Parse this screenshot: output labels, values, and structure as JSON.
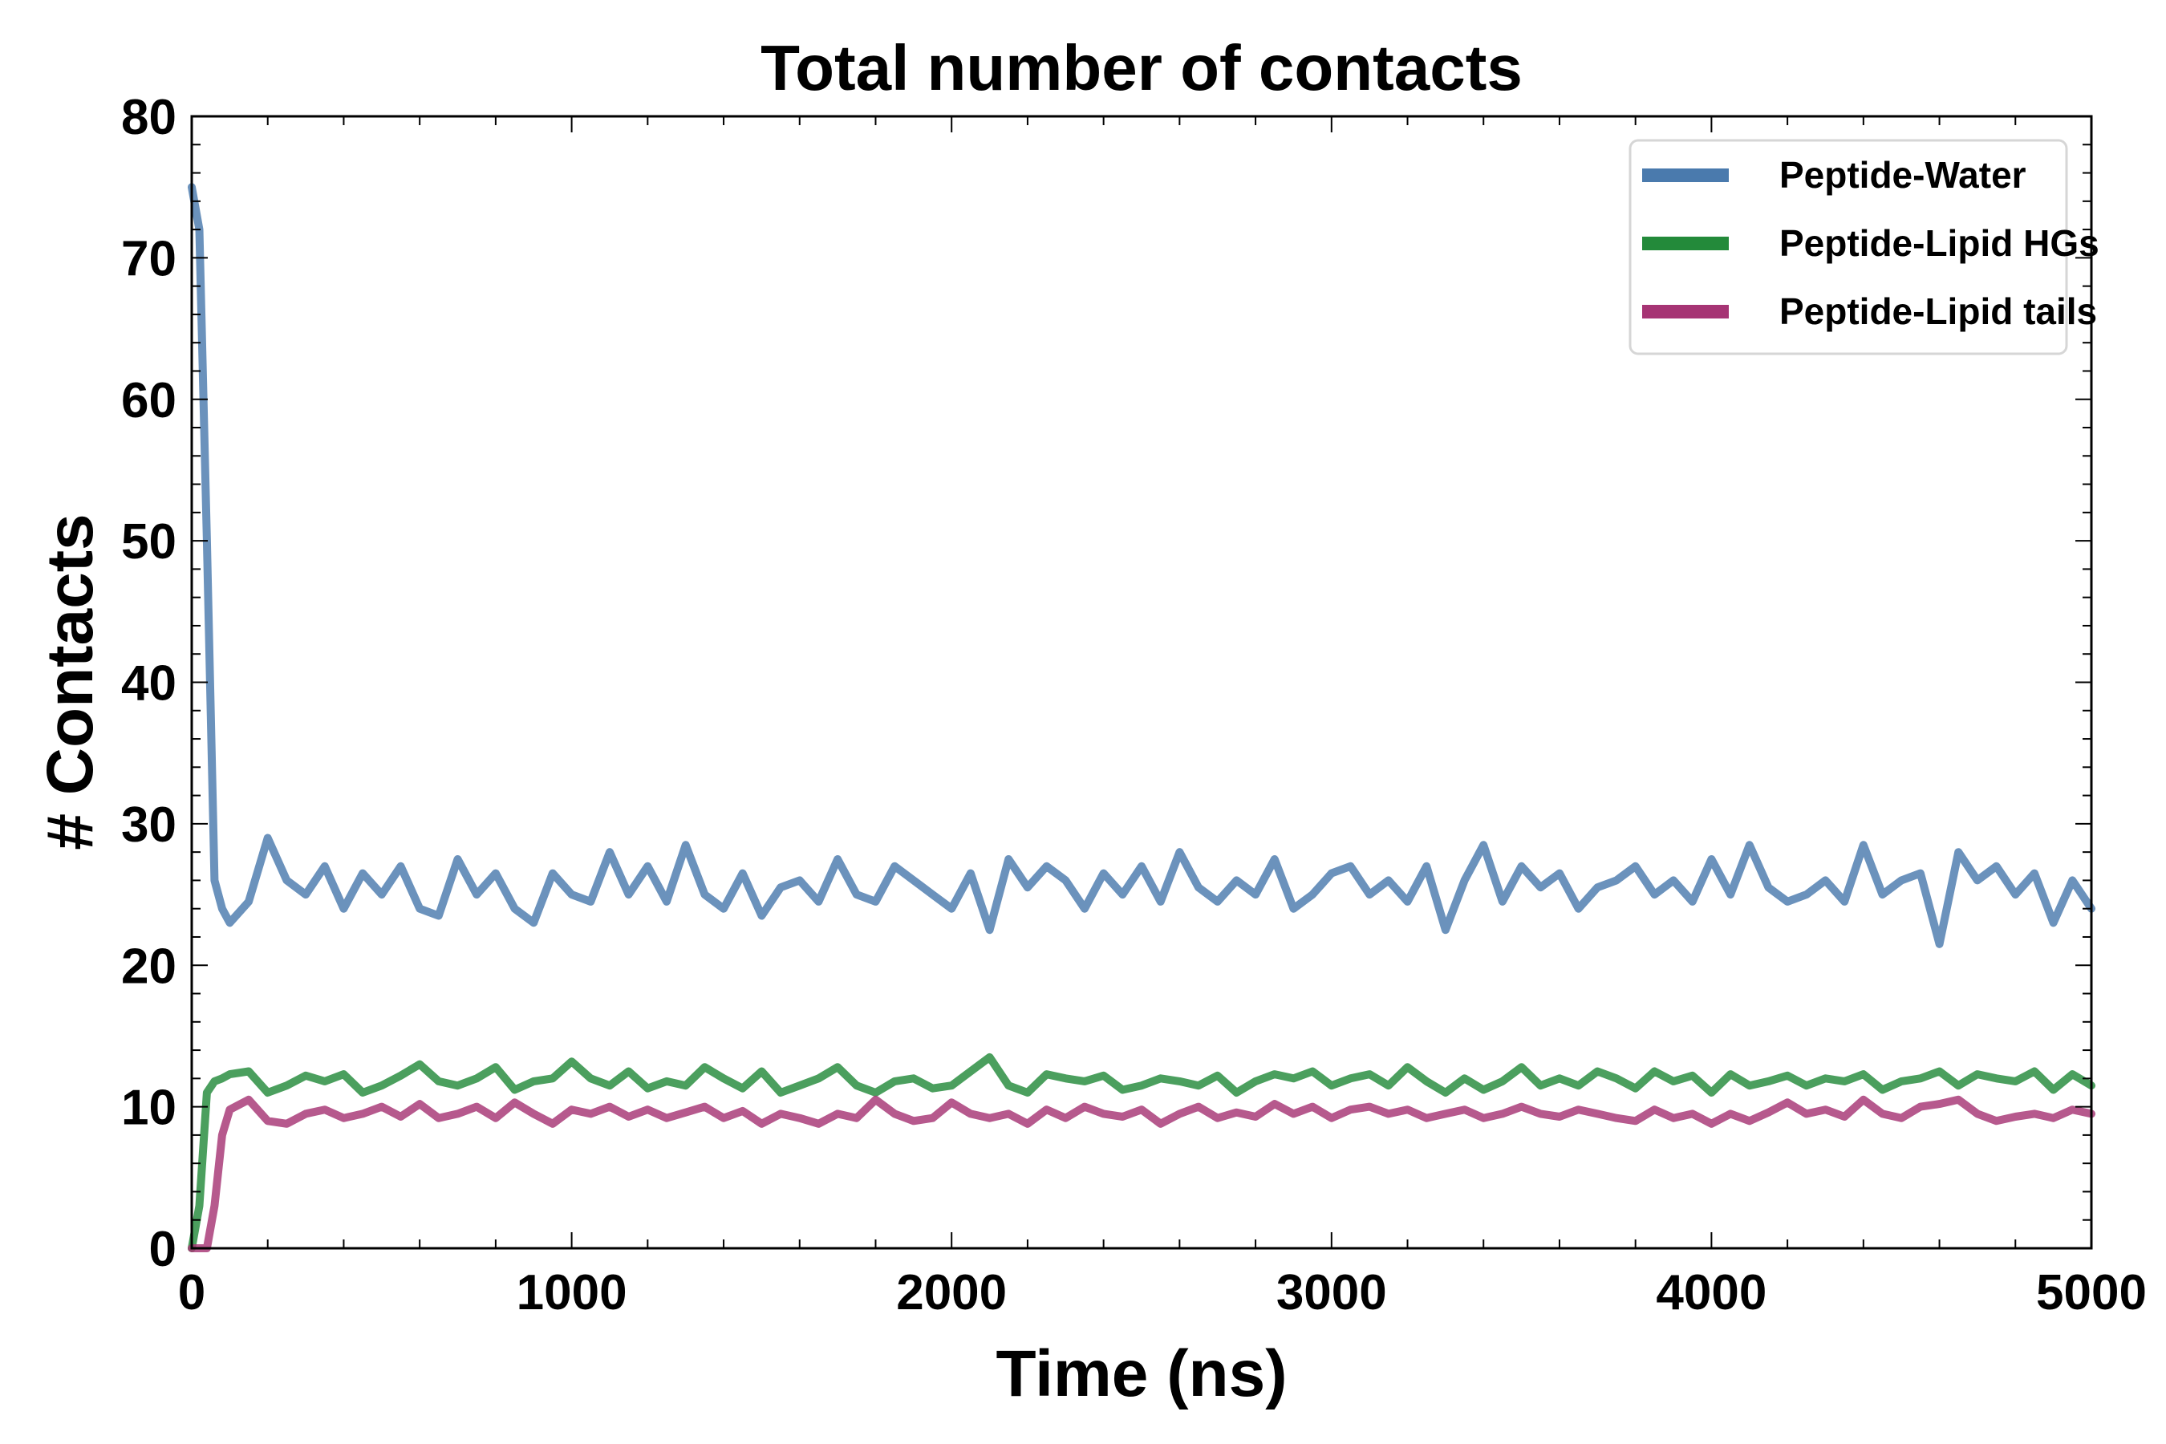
{
  "chart_data": {
    "type": "line",
    "title": "Total number of contacts",
    "xlabel": "Time (ns)",
    "ylabel": "# Contacts",
    "xlim": [
      0,
      5000
    ],
    "ylim": [
      0,
      80
    ],
    "xticks": [
      "0",
      "1000",
      "2000",
      "3000",
      "4000",
      "5000"
    ],
    "yticks": [
      "0",
      "10",
      "20",
      "30",
      "40",
      "50",
      "60",
      "70",
      "80"
    ],
    "x_minor_step": 200,
    "y_minor_step": 2,
    "grid": false,
    "legend_position": "top-right",
    "x": [
      0,
      20,
      40,
      60,
      80,
      100,
      150,
      200,
      250,
      300,
      350,
      400,
      450,
      500,
      550,
      600,
      650,
      700,
      750,
      800,
      850,
      900,
      950,
      1000,
      1050,
      1100,
      1150,
      1200,
      1250,
      1300,
      1350,
      1400,
      1450,
      1500,
      1550,
      1600,
      1650,
      1700,
      1750,
      1800,
      1850,
      1900,
      1950,
      2000,
      2050,
      2100,
      2150,
      2200,
      2250,
      2300,
      2350,
      2400,
      2450,
      2500,
      2550,
      2600,
      2650,
      2700,
      2750,
      2800,
      2850,
      2900,
      2950,
      3000,
      3050,
      3100,
      3150,
      3200,
      3250,
      3300,
      3350,
      3400,
      3450,
      3500,
      3550,
      3600,
      3650,
      3700,
      3750,
      3800,
      3850,
      3900,
      3950,
      4000,
      4050,
      4100,
      4150,
      4200,
      4250,
      4300,
      4350,
      4400,
      4450,
      4500,
      4550,
      4600,
      4650,
      4700,
      4750,
      4800,
      4850,
      4900,
      4950,
      5000
    ],
    "series": [
      {
        "name": "Peptide-Water",
        "color": "#4a7aad",
        "values": [
          75,
          72,
          50,
          26,
          24,
          23,
          24.5,
          29,
          26,
          25,
          27,
          24,
          26.5,
          25,
          27,
          24,
          23.5,
          27.5,
          25,
          26.5,
          24,
          23,
          26.5,
          25,
          24.5,
          28,
          25,
          27,
          24.5,
          28.5,
          25,
          24,
          26.5,
          23.5,
          25.5,
          26,
          24.5,
          27.5,
          25,
          24.5,
          27,
          26,
          25,
          24,
          26.5,
          22.5,
          27.5,
          25.5,
          27,
          26,
          24,
          26.5,
          25,
          27,
          24.5,
          28,
          25.5,
          24.5,
          26,
          25,
          27.5,
          24,
          25,
          26.5,
          27,
          25,
          26,
          24.5,
          27,
          22.5,
          26,
          28.5,
          24.5,
          27,
          25.5,
          26.5,
          24,
          25.5,
          26,
          27,
          25,
          26,
          24.5,
          27.5,
          25,
          28.5,
          25.5,
          24.5,
          25,
          26,
          24.5,
          28.5,
          25,
          26,
          26.5,
          21.5,
          28,
          26,
          27,
          25,
          26.5,
          23,
          26,
          24
        ]
      },
      {
        "name": "Peptide-Lipid HGs",
        "color": "#238a3a",
        "values": [
          0,
          3,
          11,
          11.8,
          12,
          12.3,
          12.5,
          11,
          11.5,
          12.2,
          11.8,
          12.3,
          11,
          11.5,
          12.2,
          13,
          11.8,
          11.5,
          12,
          12.8,
          11.2,
          11.8,
          12,
          13.2,
          12,
          11.5,
          12.5,
          11.3,
          11.8,
          11.5,
          12.8,
          12,
          11.3,
          12.5,
          11,
          11.5,
          12,
          12.8,
          11.5,
          11,
          11.8,
          12,
          11.3,
          11.5,
          12.5,
          13.5,
          11.5,
          11,
          12.3,
          12,
          11.8,
          12.2,
          11.2,
          11.5,
          12,
          11.8,
          11.5,
          12.2,
          11,
          11.8,
          12.3,
          12,
          12.5,
          11.5,
          12,
          12.3,
          11.5,
          12.8,
          11.8,
          11,
          12,
          11.2,
          11.8,
          12.8,
          11.5,
          12,
          11.5,
          12.5,
          12,
          11.3,
          12.5,
          11.8,
          12.2,
          11,
          12.3,
          11.5,
          11.8,
          12.2,
          11.5,
          12,
          11.8,
          12.3,
          11.2,
          11.8,
          12,
          12.5,
          11.5,
          12.3,
          12,
          11.8,
          12.5,
          11.2,
          12.3,
          11.5
        ]
      },
      {
        "name": "Peptide-Lipid tails",
        "color": "#a63474",
        "values": [
          0,
          0,
          0,
          3,
          8,
          9.8,
          10.5,
          9,
          8.8,
          9.5,
          9.8,
          9.2,
          9.5,
          10,
          9.3,
          10.2,
          9.2,
          9.5,
          10,
          9.2,
          10.3,
          9.5,
          8.8,
          9.8,
          9.5,
          10,
          9.3,
          9.8,
          9.2,
          9.6,
          10,
          9.2,
          9.7,
          8.8,
          9.5,
          9.2,
          8.8,
          9.5,
          9.2,
          10.5,
          9.5,
          9,
          9.2,
          10.3,
          9.5,
          9.2,
          9.5,
          8.8,
          9.8,
          9.2,
          10,
          9.5,
          9.3,
          9.8,
          8.8,
          9.5,
          10,
          9.2,
          9.6,
          9.3,
          10.2,
          9.5,
          10,
          9.2,
          9.8,
          10,
          9.5,
          9.8,
          9.2,
          9.5,
          9.8,
          9.2,
          9.5,
          10,
          9.5,
          9.3,
          9.8,
          9.5,
          9.2,
          9,
          9.8,
          9.2,
          9.5,
          8.8,
          9.5,
          9,
          9.6,
          10.3,
          9.5,
          9.8,
          9.3,
          10.5,
          9.5,
          9.2,
          10,
          10.2,
          10.5,
          9.5,
          9,
          9.3,
          9.5,
          9.2,
          9.8,
          9.5
        ]
      }
    ]
  }
}
